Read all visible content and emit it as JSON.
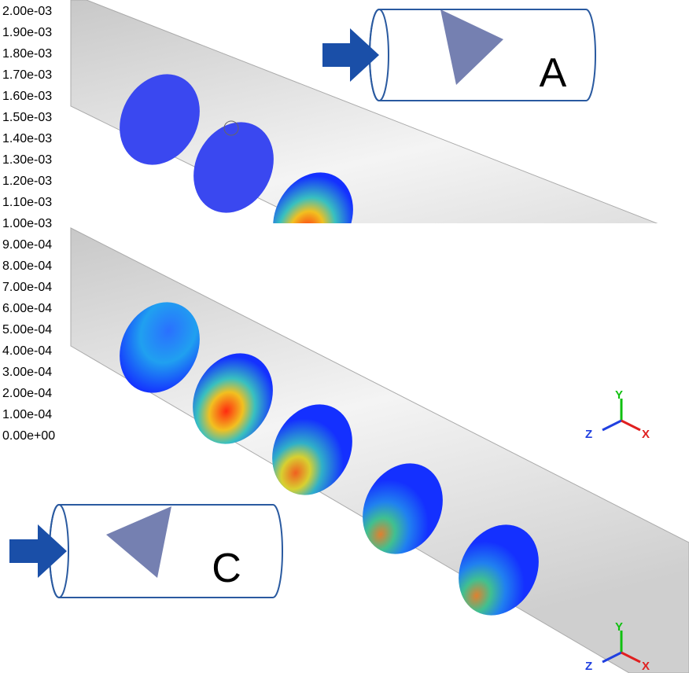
{
  "colorbar": {
    "labels": [
      "2.00e-03",
      "1.90e-03",
      "1.80e-03",
      "1.70e-03",
      "1.60e-03",
      "1.50e-03",
      "1.40e-03",
      "1.30e-03",
      "1.20e-03",
      "1.10e-03",
      "1.00e-03",
      "9.00e-04",
      "8.00e-04",
      "7.00e-04",
      "6.00e-04",
      "5.00e-04",
      "4.00e-04",
      "3.00e-04",
      "2.00e-04",
      "1.00e-04",
      "0.00e+00"
    ]
  },
  "insets": [
    {
      "label": "A"
    },
    {
      "label": "C"
    }
  ],
  "axes": [
    {
      "y": "Y",
      "z": "Z",
      "x": "X"
    },
    {
      "y": "Y",
      "z": "Z",
      "x": "X"
    }
  ]
}
